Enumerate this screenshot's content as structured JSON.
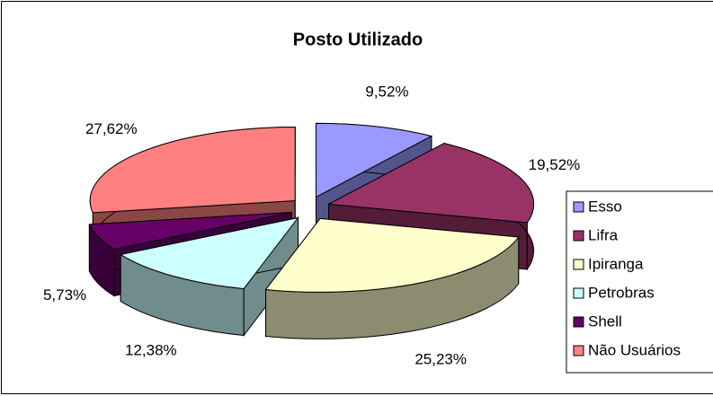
{
  "chart_data": {
    "type": "pie",
    "title": "Posto Utilizado",
    "categories": [
      "Esso",
      "Lifra",
      "Ipiranga",
      "Petrobras",
      "Shell",
      "Não Usuários"
    ],
    "values": [
      9.52,
      19.52,
      25.23,
      12.38,
      5.73,
      27.62
    ],
    "value_labels": [
      "9,52%",
      "19,52%",
      "25,23%",
      "12,38%",
      "5,73%",
      "27,62%"
    ],
    "colors": [
      "#9999ff",
      "#993366",
      "#ffffcc",
      "#ccffff",
      "#660066",
      "#ff8080"
    ],
    "legend": "right"
  }
}
